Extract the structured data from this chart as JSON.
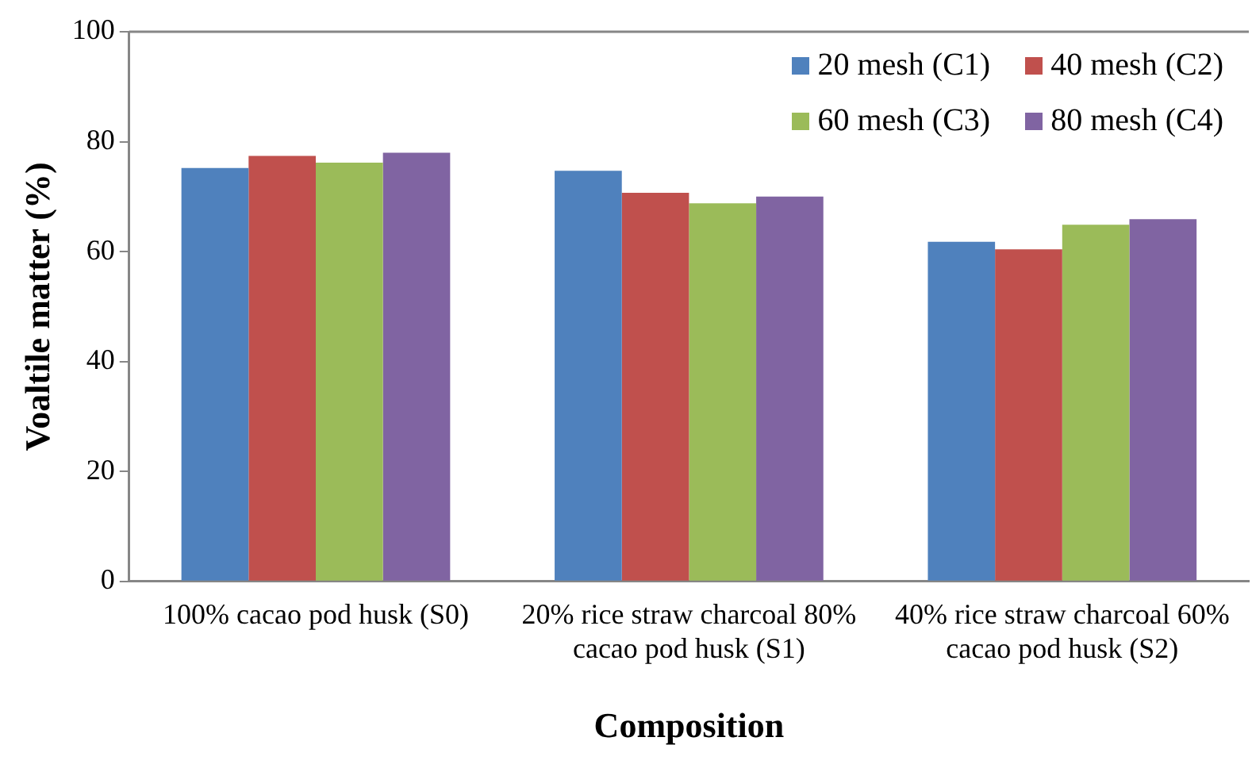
{
  "chart_data": {
    "type": "bar",
    "xlabel": "Composition",
    "ylabel": "Voaltile matter (%)",
    "categories": [
      "100% cacao pod husk (S0)",
      "20% rice straw charcoal 80% cacao pod husk (S1)",
      "40% rice straw charcoal 60% cacao pod husk (S2)"
    ],
    "series": [
      {
        "name": "20 mesh (C1)",
        "color": "#4f81bd",
        "values": [
          75.2,
          74.7,
          61.8
        ]
      },
      {
        "name": "40 mesh (C2)",
        "color": "#c0504d",
        "values": [
          77.4,
          70.7,
          60.4
        ]
      },
      {
        "name": "60 mesh (C3)",
        "color": "#9bbb59",
        "values": [
          76.2,
          68.8,
          64.9
        ]
      },
      {
        "name": "80 mesh (C4)",
        "color": "#8064a2",
        "values": [
          78.0,
          70.0,
          65.9
        ]
      }
    ],
    "ylim": [
      0,
      100
    ],
    "yticks": [
      0,
      20,
      40,
      60,
      80,
      100
    ],
    "grid": false,
    "legend": "top right"
  }
}
